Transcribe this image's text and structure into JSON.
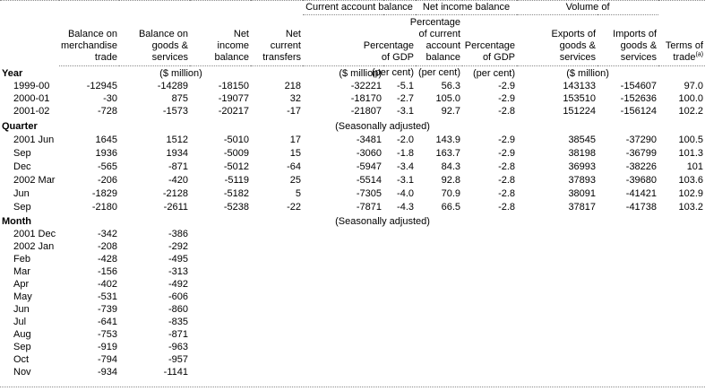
{
  "table": {
    "spanners": [
      {
        "label": "Current account balance"
      },
      {
        "label": "Net income balance"
      },
      {
        "label": "Volume of"
      }
    ],
    "columns": [
      {
        "header": ""
      },
      {
        "header": "Balance on merchandise trade"
      },
      {
        "header": "Balance on goods & services"
      },
      {
        "header": "Net income balance"
      },
      {
        "header": "Net current transfers"
      },
      {
        "header": ""
      },
      {
        "header": "Percentage of GDP"
      },
      {
        "header": "Percentage of current account balance"
      },
      {
        "header": "Percentage of GDP"
      },
      {
        "header": "Exports of goods & services"
      },
      {
        "header": "Imports of goods & services"
      },
      {
        "header": "Terms of trade",
        "footnote_ref": "(a)"
      }
    ],
    "units": {
      "group1": "($ million)",
      "cab": "($ million)",
      "cab_pct": "(per cent)",
      "nib_pct_cab": "(per cent)",
      "nib_pct_gdp": "(per cent)",
      "volume": "($ million)"
    },
    "sections": {
      "year": {
        "label": "Year",
        "rows": [
          {
            "label": "1999-00",
            "values": [
              "-12945",
              "-14289",
              "-18150",
              "218",
              "-32221",
              "-5.1",
              "56.3",
              "-2.9",
              "143133",
              "-154607",
              "97.0"
            ]
          },
          {
            "label": "2000-01",
            "values": [
              "-30",
              "875",
              "-19077",
              "32",
              "-18170",
              "-2.7",
              "105.0",
              "-2.9",
              "153510",
              "-152636",
              "100.0"
            ]
          },
          {
            "label": "2001-02",
            "values": [
              "-728",
              "-1573",
              "-20217",
              "-17",
              "-21807",
              "-3.1",
              "92.7",
              "-2.8",
              "151224",
              "-156124",
              "102.2"
            ]
          }
        ]
      },
      "quarter": {
        "label": "Quarter",
        "note": "(Seasonally adjusted)",
        "rows": [
          {
            "label": "2001 Jun",
            "values": [
              "1645",
              "1512",
              "-5010",
              "17",
              "-3481",
              "-2.0",
              "143.9",
              "-2.9",
              "38545",
              "-37290",
              "100.5"
            ]
          },
          {
            "label": "Sep",
            "values": [
              "1936",
              "1934",
              "-5009",
              "15",
              "-3060",
              "-1.8",
              "163.7",
              "-2.9",
              "38198",
              "-36799",
              "101.3"
            ]
          },
          {
            "label": "Dec",
            "values": [
              "-565",
              "-871",
              "-5012",
              "-64",
              "-5947",
              "-3.4",
              "84.3",
              "-2.8",
              "36993",
              "-38226",
              "101"
            ]
          },
          {
            "label": "2002 Mar",
            "values": [
              "-206",
              "-420",
              "-5119",
              "25",
              "-5514",
              "-3.1",
              "92.8",
              "-2.8",
              "37893",
              "-39680",
              "103.6"
            ]
          },
          {
            "label": "Jun",
            "values": [
              "-1829",
              "-2128",
              "-5182",
              "5",
              "-7305",
              "-4.0",
              "70.9",
              "-2.8",
              "38091",
              "-41421",
              "102.9"
            ]
          },
          {
            "label": "Sep",
            "values": [
              "-2180",
              "-2611",
              "-5238",
              "-22",
              "-7871",
              "-4.3",
              "66.5",
              "-2.8",
              "37817",
              "-41738",
              "103.2"
            ]
          }
        ]
      },
      "month": {
        "label": "Month",
        "note": "(Seasonally adjusted)",
        "rows": [
          {
            "label": "2001 Dec",
            "values": [
              "-342",
              "-386",
              "",
              "",
              "",
              "",
              "",
              "",
              "",
              "",
              ""
            ]
          },
          {
            "label": "2002 Jan",
            "values": [
              "-208",
              "-292",
              "",
              "",
              "",
              "",
              "",
              "",
              "",
              "",
              ""
            ]
          },
          {
            "label": "Feb",
            "values": [
              "-428",
              "-495",
              "",
              "",
              "",
              "",
              "",
              "",
              "",
              "",
              ""
            ]
          },
          {
            "label": "Mar",
            "values": [
              "-156",
              "-313",
              "",
              "",
              "",
              "",
              "",
              "",
              "",
              "",
              ""
            ]
          },
          {
            "label": "Apr",
            "values": [
              "-402",
              "-492",
              "",
              "",
              "",
              "",
              "",
              "",
              "",
              "",
              ""
            ]
          },
          {
            "label": "May",
            "values": [
              "-531",
              "-606",
              "",
              "",
              "",
              "",
              "",
              "",
              "",
              "",
              ""
            ]
          },
          {
            "label": "Jun",
            "values": [
              "-739",
              "-860",
              "",
              "",
              "",
              "",
              "",
              "",
              "",
              "",
              ""
            ]
          },
          {
            "label": "Jul",
            "values": [
              "-641",
              "-835",
              "",
              "",
              "",
              "",
              "",
              "",
              "",
              "",
              ""
            ]
          },
          {
            "label": "Aug",
            "values": [
              "-753",
              "-871",
              "",
              "",
              "",
              "",
              "",
              "",
              "",
              "",
              ""
            ]
          },
          {
            "label": "Sep",
            "values": [
              "-919",
              "-963",
              "",
              "",
              "",
              "",
              "",
              "",
              "",
              "",
              ""
            ]
          },
          {
            "label": "Oct",
            "values": [
              "-794",
              "-957",
              "",
              "",
              "",
              "",
              "",
              "",
              "",
              "",
              ""
            ]
          },
          {
            "label": "Nov",
            "values": [
              "-934",
              "-1141",
              "",
              "",
              "",
              "",
              "",
              "",
              "",
              "",
              ""
            ]
          }
        ]
      }
    }
  }
}
